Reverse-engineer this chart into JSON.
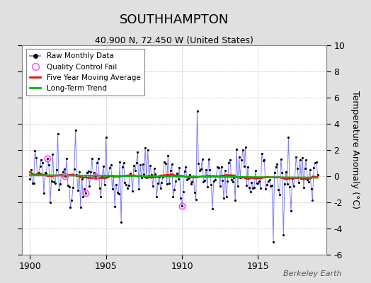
{
  "title": "SOUTHHAMPTON",
  "subtitle": "40.900 N, 72.450 W (United States)",
  "ylabel": "Temperature Anomaly (°C)",
  "watermark": "Berkeley Earth",
  "xlim": [
    1899.5,
    1919.5
  ],
  "ylim": [
    -6,
    10
  ],
  "yticks_right": [
    -6,
    -4,
    -2,
    0,
    2,
    4,
    6,
    8,
    10
  ],
  "yticks_left": [
    -6,
    -4,
    -2,
    0,
    2,
    4,
    6,
    8,
    10
  ],
  "xticks": [
    1900,
    1905,
    1910,
    1915
  ],
  "bg_color": "#e0e0e0",
  "plot_bg_color": "#ffffff",
  "line_color": "#6666ff",
  "dot_color": "#000000",
  "ma_color": "#ff0000",
  "trend_color": "#00bb00",
  "qc_color": "#ff44ff",
  "seed": 12345,
  "n_months": 228,
  "start_year": 1900
}
